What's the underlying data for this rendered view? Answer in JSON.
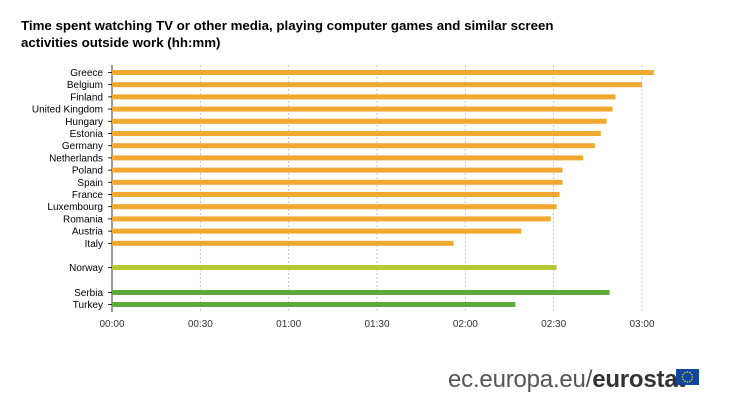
{
  "title": "Time spent watching TV or other media, playing computer games and similar screen activities outside work (hh:mm)",
  "footer": {
    "site": "ec.europa.eu/",
    "brand": "eurostat"
  },
  "icons": {
    "logo": "eu-flag-icon"
  },
  "colors": {
    "eu_members": "#f0a830",
    "norway": "#b5c934",
    "candidates": "#5daa3c"
  },
  "chart_data": {
    "type": "bar",
    "orientation": "horizontal",
    "title": "Time spent watching TV or other media, playing computer games and similar screen activities outside work (hh:mm)",
    "categories": [
      "Greece",
      "Belgium",
      "Finland",
      "United Kingdom",
      "Hungary",
      "Estonia",
      "Germany",
      "Netherlands",
      "Poland",
      "Spain",
      "France",
      "Luxembourg",
      "Romania",
      "Austria",
      "Italy",
      "Norway",
      "Serbia",
      "Turkey"
    ],
    "values_minutes": [
      184,
      180,
      171,
      170,
      168,
      166,
      164,
      160,
      153,
      153,
      152,
      151,
      149,
      139,
      116,
      151,
      169,
      137
    ],
    "groups": [
      "eu",
      "eu",
      "eu",
      "eu",
      "eu",
      "eu",
      "eu",
      "eu",
      "eu",
      "eu",
      "eu",
      "eu",
      "eu",
      "eu",
      "eu",
      "norway",
      "candidates",
      "candidates"
    ],
    "xlim_minutes": [
      0,
      180
    ],
    "xticks": [
      "00:00",
      "00:30",
      "01:00",
      "01:30",
      "02:00",
      "02:30",
      "03:00"
    ],
    "grid": true,
    "legend": "none"
  }
}
